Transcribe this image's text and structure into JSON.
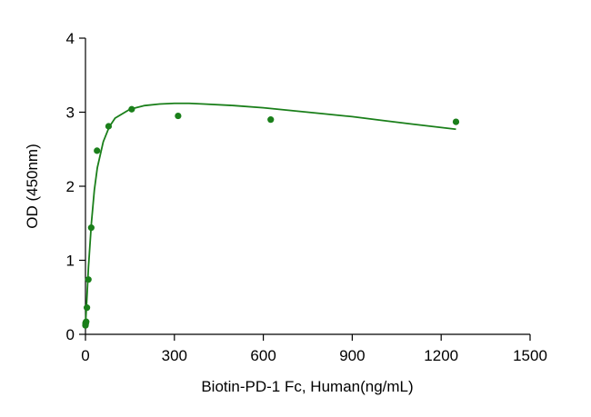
{
  "chart_data": {
    "type": "scatter",
    "title": "",
    "xlabel": "Biotin-PD-1 Fc, Human(ng/mL)",
    "ylabel": "OD (450nm)",
    "xlim": [
      0,
      1500
    ],
    "ylim": [
      0,
      4
    ],
    "xticks": [
      0,
      300,
      600,
      900,
      1200,
      1500
    ],
    "yticks": [
      0,
      1,
      2,
      3,
      4
    ],
    "grid": false,
    "legend": "none",
    "series": [
      {
        "color": "#1a7f1a",
        "points": [
          {
            "x": 0,
            "y": 0.12
          },
          {
            "x": 0.3,
            "y": 0.15
          },
          {
            "x": 0.6,
            "y": 0.14
          },
          {
            "x": 1.2,
            "y": 0.16
          },
          {
            "x": 2.4,
            "y": 0.17
          },
          {
            "x": 4.9,
            "y": 0.36
          },
          {
            "x": 9.8,
            "y": 0.74
          },
          {
            "x": 19.5,
            "y": 1.44
          },
          {
            "x": 39,
            "y": 2.48
          },
          {
            "x": 78,
            "y": 2.81
          },
          {
            "x": 156,
            "y": 3.04
          },
          {
            "x": 312.5,
            "y": 2.95
          },
          {
            "x": 625,
            "y": 2.9
          },
          {
            "x": 1250,
            "y": 2.87
          }
        ],
        "fit_curve": [
          {
            "x": 0,
            "y": 0.12
          },
          {
            "x": 5,
            "y": 0.5
          },
          {
            "x": 10,
            "y": 0.9
          },
          {
            "x": 20,
            "y": 1.5
          },
          {
            "x": 30,
            "y": 1.95
          },
          {
            "x": 40,
            "y": 2.25
          },
          {
            "x": 60,
            "y": 2.6
          },
          {
            "x": 80,
            "y": 2.8
          },
          {
            "x": 100,
            "y": 2.92
          },
          {
            "x": 150,
            "y": 3.04
          },
          {
            "x": 200,
            "y": 3.09
          },
          {
            "x": 250,
            "y": 3.11
          },
          {
            "x": 300,
            "y": 3.12
          },
          {
            "x": 350,
            "y": 3.12
          },
          {
            "x": 400,
            "y": 3.11
          },
          {
            "x": 500,
            "y": 3.09
          },
          {
            "x": 600,
            "y": 3.06
          },
          {
            "x": 700,
            "y": 3.02
          },
          {
            "x": 800,
            "y": 2.98
          },
          {
            "x": 900,
            "y": 2.94
          },
          {
            "x": 1000,
            "y": 2.89
          },
          {
            "x": 1100,
            "y": 2.84
          },
          {
            "x": 1250,
            "y": 2.77
          }
        ]
      }
    ]
  }
}
